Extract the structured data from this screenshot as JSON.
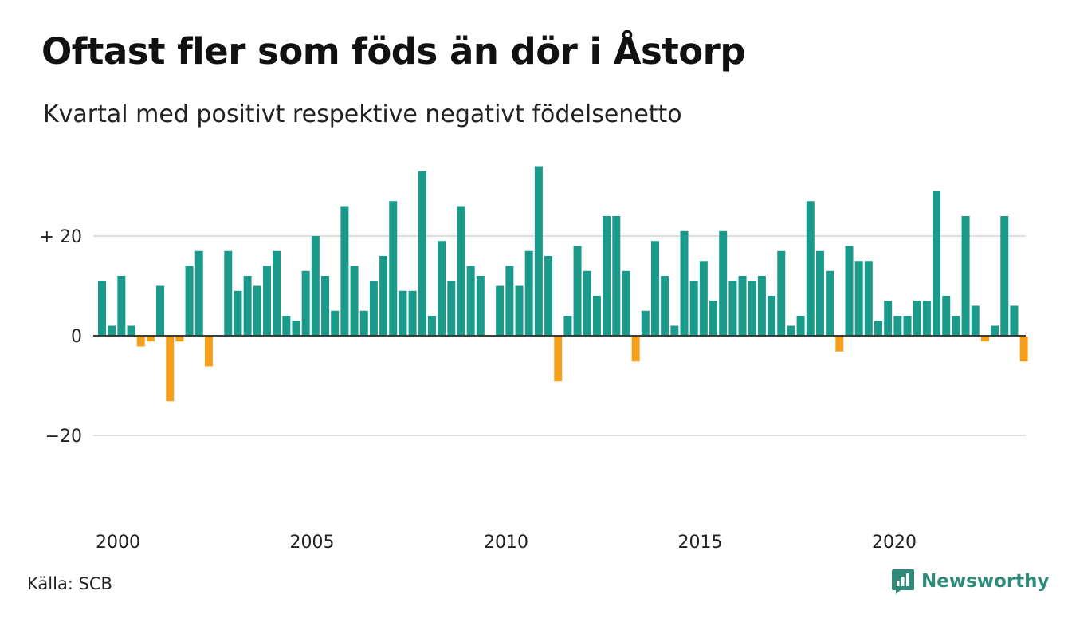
{
  "header": {
    "title": "Oftast fler som föds än dör i Åstorp",
    "subtitle": "Kvartal med positivt respektive negativt födelsenetto"
  },
  "footer": {
    "source": "Källa: SCB",
    "brand": "Newsworthy",
    "brand_icon": "newsworthy-logo-icon"
  },
  "colors": {
    "positive": "#1a9a8a",
    "negative": "#f5a01c",
    "grid": "#dddddd",
    "zero_line": "#222222",
    "brand": "#2f8a7a"
  },
  "chart_data": {
    "type": "bar",
    "title": "Oftast fler som föds än dör i Åstorp",
    "subtitle": "Kvartal med positivt respektive negativt födelsenetto",
    "xlabel": "",
    "ylabel": "",
    "x_tick_labels": [
      "2000",
      "2005",
      "2010",
      "2015",
      "2020"
    ],
    "y_ticks": [
      {
        "value": 20,
        "label": "+ 20"
      },
      {
        "value": 0,
        "label": "0"
      },
      {
        "value": -20,
        "label": "−20"
      }
    ],
    "ylim": [
      -35,
      35
    ],
    "grid": true,
    "start_period": "2000 Q1",
    "period": "quarter",
    "values": [
      11,
      2,
      12,
      2,
      -2,
      -1,
      10,
      -13,
      -1,
      14,
      17,
      -6,
      0,
      17,
      9,
      12,
      10,
      14,
      17,
      4,
      3,
      13,
      20,
      12,
      5,
      26,
      14,
      5,
      11,
      16,
      27,
      9,
      9,
      33,
      4,
      19,
      11,
      26,
      14,
      12,
      0,
      10,
      14,
      10,
      17,
      34,
      16,
      -9,
      4,
      18,
      13,
      8,
      24,
      24,
      13,
      -5,
      5,
      19,
      12,
      2,
      21,
      11,
      15,
      7,
      21,
      11,
      12,
      11,
      12,
      8,
      17,
      2,
      4,
      27,
      17,
      13,
      -3,
      18,
      15,
      15,
      3,
      7,
      4,
      4,
      7,
      7,
      29,
      8,
      4,
      24,
      6,
      -1,
      2,
      24,
      6,
      -5
    ]
  }
}
